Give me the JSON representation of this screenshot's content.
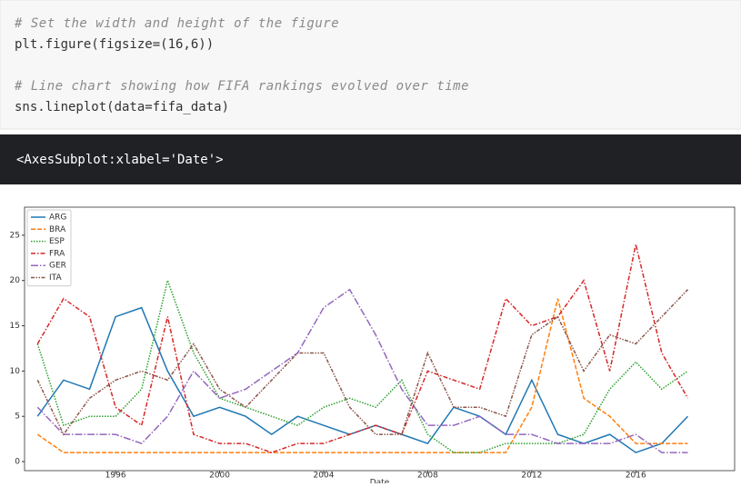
{
  "code_cell": {
    "lines": [
      "# Set the width and height of the figure",
      "plt.figure(figsize=(16,6))",
      "",
      "# Line chart showing how FIFA rankings evolved over time",
      "sns.lineplot(data=fifa_data)"
    ]
  },
  "output": {
    "text": "<AxesSubplot:xlabel='Date'>"
  },
  "chart_data": {
    "type": "line",
    "xlabel": "Date",
    "x": [
      1993,
      1994,
      1995,
      1996,
      1997,
      1998,
      1999,
      2000,
      2001,
      2002,
      2003,
      2004,
      2005,
      2006,
      2007,
      2008,
      2009,
      2010,
      2011,
      2012,
      2013,
      2014,
      2015,
      2016,
      2017,
      2018
    ],
    "xlim": [
      1992.5,
      2019.8
    ],
    "xticks": [
      1996,
      2000,
      2004,
      2008,
      2012,
      2016
    ],
    "ylim": [
      -1.0,
      28.1
    ],
    "yticks": [
      0,
      5,
      10,
      15,
      20,
      25
    ],
    "legend": "upper left",
    "series": [
      {
        "name": "ARG",
        "color": "#1f77b4",
        "dash": "none",
        "values": [
          5,
          9,
          8,
          16,
          17,
          10,
          5,
          6,
          5,
          3,
          5,
          4,
          3,
          4,
          3,
          2,
          6,
          5,
          3,
          9,
          3,
          2,
          3,
          1,
          2,
          5
        ]
      },
      {
        "name": "BRA",
        "color": "#ff7f0e",
        "dash": "5,2",
        "values": [
          3,
          1,
          1,
          1,
          1,
          1,
          1,
          1,
          1,
          1,
          1,
          1,
          1,
          1,
          1,
          1,
          1,
          1,
          1,
          6,
          18,
          7,
          5,
          2,
          2,
          2
        ]
      },
      {
        "name": "ESP",
        "color": "#2ca02c",
        "dash": "1.5,1.5",
        "values": [
          13,
          4,
          5,
          5,
          8,
          20,
          12,
          7,
          6,
          5,
          4,
          6,
          7,
          6,
          9,
          3,
          1,
          1,
          2,
          2,
          2,
          3,
          8,
          11,
          8,
          10
        ]
      },
      {
        "name": "FRA",
        "color": "#d62728",
        "dash": "5,2,1.5,2",
        "values": [
          13,
          18,
          16,
          6,
          4,
          16,
          3,
          2,
          2,
          1,
          2,
          2,
          3,
          4,
          3,
          10,
          9,
          8,
          18,
          15,
          16,
          20,
          10,
          24,
          12,
          7
        ]
      },
      {
        "name": "GER",
        "color": "#9467bd",
        "dash": "8,2,1.5,2",
        "values": [
          6,
          3,
          3,
          3,
          2,
          5,
          10,
          7,
          8,
          10,
          12,
          17,
          19,
          14,
          8,
          4,
          4,
          5,
          3,
          3,
          2,
          2,
          2,
          3,
          1,
          1
        ]
      },
      {
        "name": "ITA",
        "color": "#8c564b",
        "dash": "4,1.5,1.5,1.5,1.5,1.5",
        "values": [
          9,
          3,
          7,
          9,
          10,
          9,
          13,
          8,
          6,
          9,
          12,
          12,
          6,
          3,
          3,
          12,
          6,
          6,
          5,
          14,
          16,
          10,
          14,
          13,
          16,
          19
        ]
      }
    ]
  }
}
